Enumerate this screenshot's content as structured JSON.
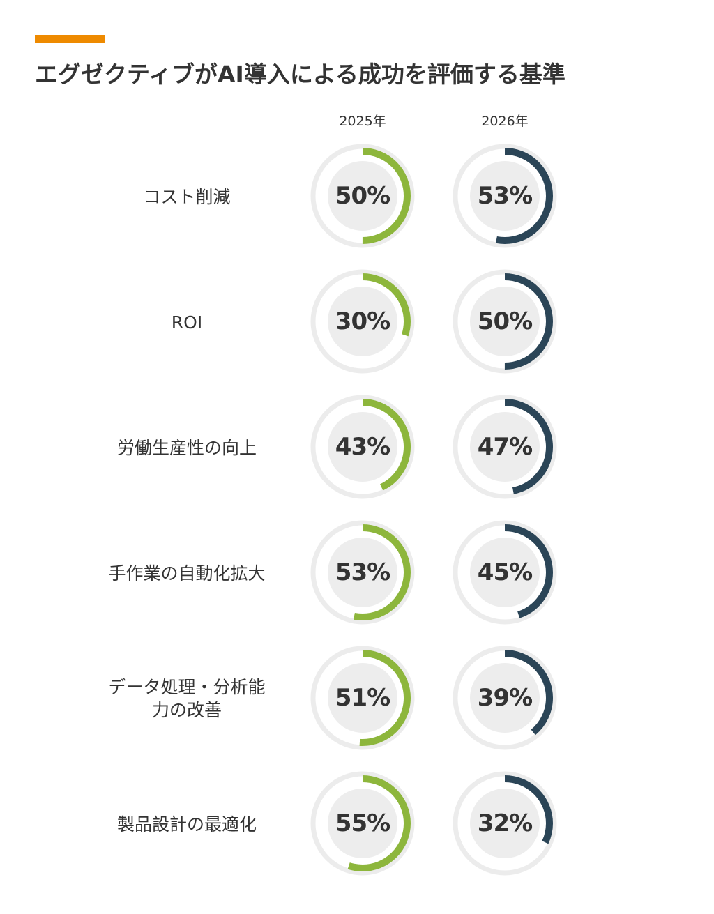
{
  "title": "エグゼクティブがAI導入による成功を評価する基準",
  "colors": {
    "accent": "#ee8a00",
    "series_2025": "#8db63c",
    "series_2026": "#2b4557",
    "track": "#ececec",
    "inner": "#ededed"
  },
  "chart_data": {
    "type": "donut",
    "title": "エグゼクティブがAI導入による成功を評価する基準",
    "unit": "%",
    "categories": [
      "コスト削減",
      "ROI",
      "労働生産性の向上",
      "手作業の自動化拡大",
      "データ処理・分析能力の改善",
      "製品設計の最適化"
    ],
    "category_lines": [
      [
        "コスト削減"
      ],
      [
        "ROI"
      ],
      [
        "労働生産性の向上"
      ],
      [
        "手作業の自動化拡大"
      ],
      [
        "データ処理・分析能",
        "力の改善"
      ],
      [
        "製品設計の最適化"
      ]
    ],
    "series": [
      {
        "name": "2025年",
        "values": [
          50,
          30,
          43,
          53,
          51,
          55
        ],
        "labels": [
          "50%",
          "30%",
          "43%",
          "53%",
          "51%",
          "55%"
        ]
      },
      {
        "name": "2026年",
        "values": [
          53,
          50,
          47,
          45,
          39,
          32
        ],
        "labels": [
          "53%",
          "50%",
          "47%",
          "45%",
          "39%",
          "32%"
        ]
      }
    ]
  }
}
